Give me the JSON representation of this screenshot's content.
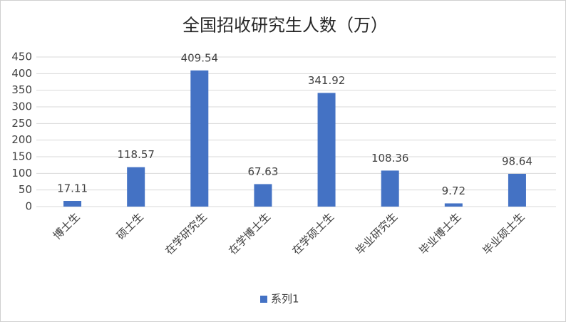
{
  "chart_data": {
    "type": "bar",
    "title": "全国招收研究生人数（万）",
    "categories": [
      "博士生",
      "硕士生",
      "在学研究生",
      "在学博士生",
      "在学硕士生",
      "毕业研究生",
      "毕业博士生",
      "毕业硕士生"
    ],
    "series": [
      {
        "name": "系列1",
        "color": "#4472c4",
        "values": [
          17.11,
          118.57,
          409.54,
          67.63,
          341.92,
          108.36,
          9.72,
          98.64
        ]
      }
    ],
    "ylim": [
      0,
      450
    ],
    "yticks": [
      0,
      50,
      100,
      150,
      200,
      250,
      300,
      350,
      400,
      450
    ],
    "grid": true,
    "legend": "bottom"
  }
}
